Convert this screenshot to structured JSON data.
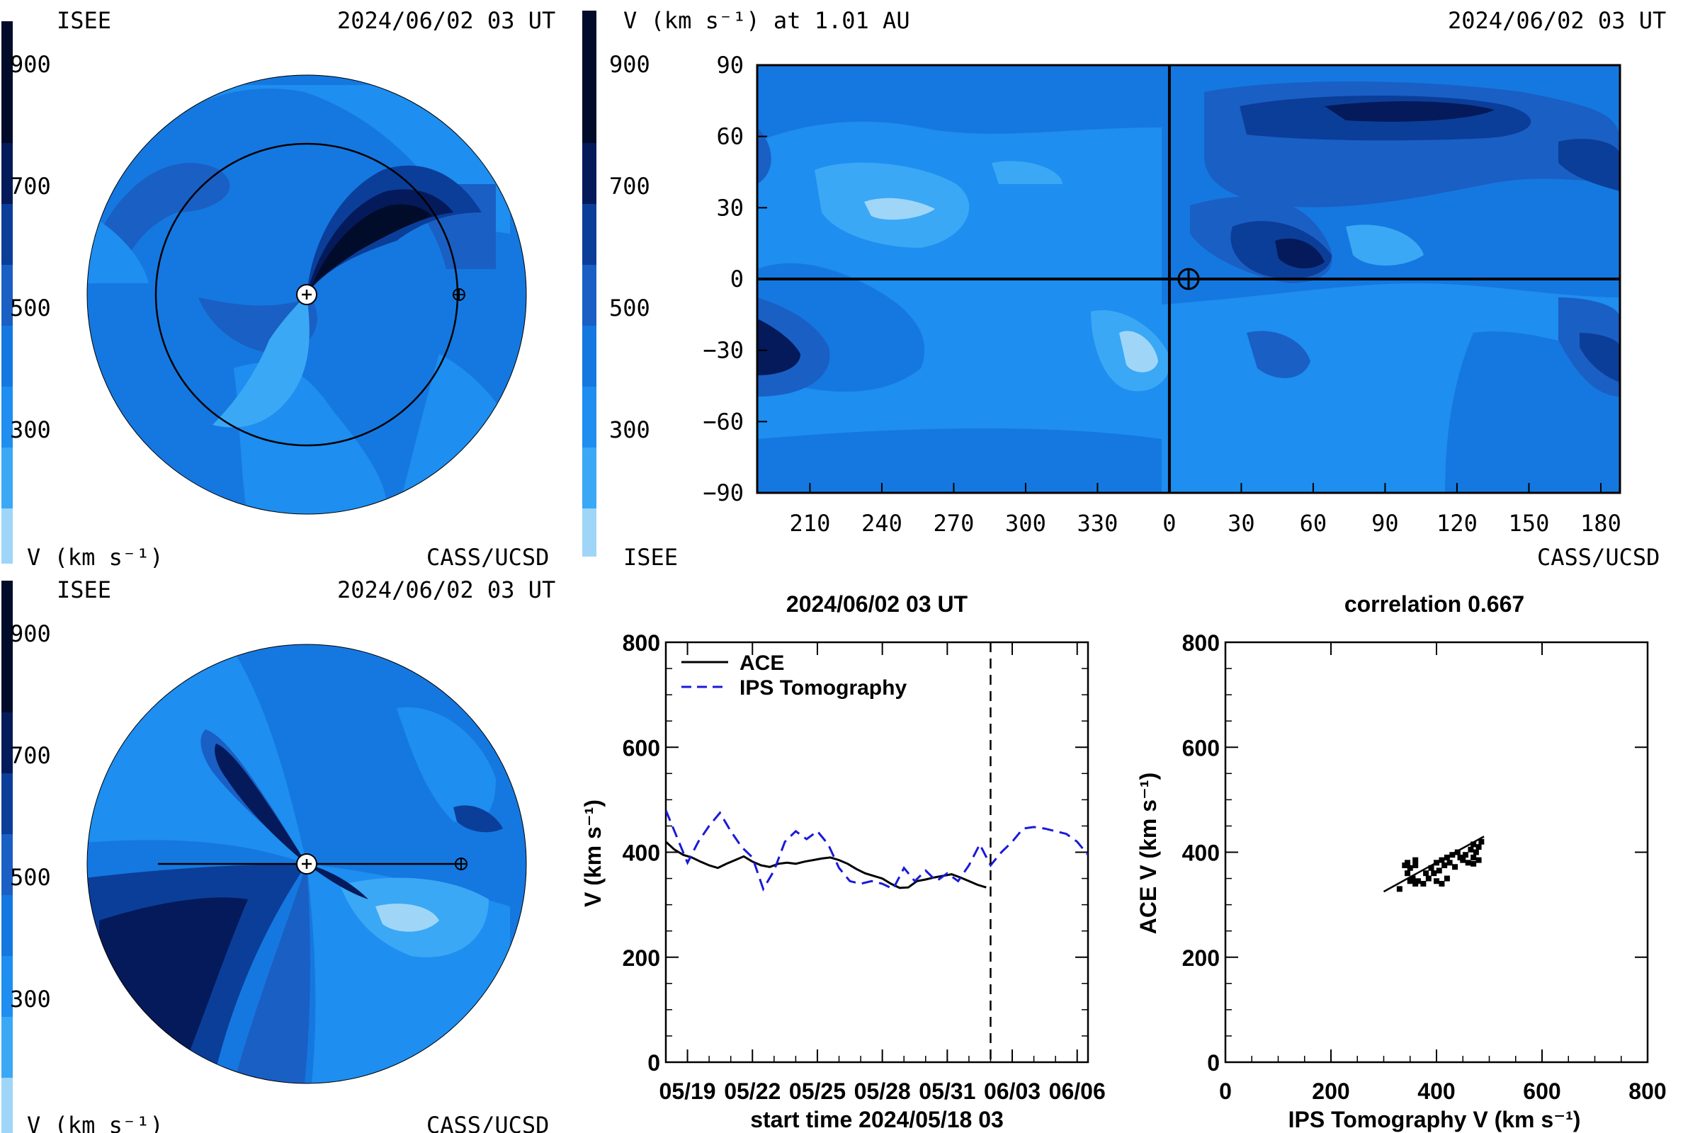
{
  "colors": {
    "levels": [
      "#9fd6f8",
      "#3aa8f5",
      "#1e8ef0",
      "#1578e0",
      "#1a5fc4",
      "#0b3e99",
      "#041a5a",
      "#000c2a"
    ],
    "ace_line": "#000000",
    "ips_line": "#1a1ad9"
  },
  "panels": {
    "top_left": {
      "org": "ISEE",
      "date": "2024/06/02 03 UT",
      "cbar_ticks": [
        "900",
        "700",
        "500",
        "300"
      ],
      "unit": "V (km s⁻¹)",
      "credit": "CASS/UCSD"
    },
    "top_right": {
      "title": "V (km s⁻¹) at 1.01 AU",
      "date": "2024/06/02 03 UT",
      "cbar_ticks": [
        "900",
        "700",
        "500",
        "300"
      ],
      "org": "ISEE",
      "credit": "CASS/UCSD"
    },
    "bottom_left": {
      "org": "ISEE",
      "date": "2024/06/02 03 UT",
      "cbar_ticks": [
        "900",
        "700",
        "500",
        "300"
      ],
      "unit": "V (km s⁻¹)",
      "credit": "CASS/UCSD"
    }
  },
  "chart_data": [
    {
      "type": "heatmap",
      "id": "synoptic-map",
      "title": "V (km s⁻¹) at 1.01 AU",
      "x_ticks": [
        "210",
        "240",
        "270",
        "300",
        "330",
        "0",
        "30",
        "60",
        "90",
        "120",
        "150",
        "180"
      ],
      "y_ticks": [
        "90",
        "60",
        "30",
        "0",
        "−30",
        "−60",
        "−90"
      ],
      "ylim": [
        -90,
        90
      ],
      "colorbar": [
        300,
        900
      ],
      "earth_marker": {
        "lon": 8,
        "lat": 0
      }
    },
    {
      "type": "line",
      "id": "timeseries",
      "title": "2024/06/02 03 UT",
      "ylabel": "V (km s⁻¹)",
      "xlabel": "start time 2024/05/18 03",
      "x_ticks": [
        "05/19",
        "05/22",
        "05/25",
        "05/28",
        "05/31",
        "06/03",
        "06/06"
      ],
      "y_ticks": [
        "800",
        "600",
        "400",
        "200",
        "0"
      ],
      "ylim": [
        0,
        800
      ],
      "xlim_days": [
        0,
        19.5
      ],
      "current_day": 15.0,
      "series": [
        {
          "name": "ACE",
          "x": [
            0,
            0.4,
            0.8,
            1.2,
            1.6,
            2.0,
            2.4,
            2.8,
            3.2,
            3.6,
            4.0,
            4.4,
            4.8,
            5.2,
            5.6,
            6.0,
            6.4,
            6.8,
            7.2,
            7.6,
            8.0,
            8.4,
            8.8,
            9.2,
            9.6,
            10.0,
            10.4,
            10.8,
            11.2,
            11.6,
            12.0,
            12.4,
            12.8,
            13.2,
            13.6,
            14.0,
            14.4,
            14.8
          ],
          "y": [
            420,
            405,
            395,
            390,
            382,
            375,
            370,
            378,
            385,
            392,
            382,
            375,
            372,
            378,
            380,
            378,
            382,
            385,
            388,
            390,
            385,
            378,
            368,
            360,
            355,
            350,
            340,
            332,
            333,
            345,
            348,
            352,
            355,
            358,
            352,
            345,
            338,
            333
          ]
        },
        {
          "name": "IPS Tomography",
          "x": [
            0,
            0.5,
            1.0,
            1.5,
            2.0,
            2.5,
            3.0,
            3.5,
            4.0,
            4.5,
            5.0,
            5.5,
            6.0,
            6.5,
            7.0,
            7.5,
            8.0,
            8.5,
            9.0,
            9.5,
            10.0,
            10.5,
            11.0,
            11.5,
            12.0,
            12.5,
            13.0,
            13.5,
            14.0,
            14.5,
            15.0,
            15.5,
            16.0,
            16.5,
            17.0,
            17.5,
            18.0,
            18.5,
            19.0,
            19.5
          ],
          "y": [
            480,
            430,
            380,
            420,
            450,
            475,
            440,
            410,
            390,
            330,
            365,
            420,
            440,
            425,
            440,
            415,
            370,
            345,
            340,
            345,
            340,
            330,
            370,
            345,
            365,
            345,
            360,
            345,
            375,
            415,
            375,
            400,
            420,
            445,
            448,
            445,
            440,
            435,
            420,
            395
          ]
        }
      ]
    },
    {
      "type": "scatter",
      "id": "correlation",
      "title": "correlation 0.667",
      "xlabel": "IPS Tomography V (km s⁻¹)",
      "ylabel": "ACE V (km s⁻¹)",
      "x_ticks": [
        "0",
        "200",
        "400",
        "600",
        "800"
      ],
      "y_ticks": [
        "800",
        "600",
        "400",
        "200",
        "0"
      ],
      "xlim": [
        0,
        800
      ],
      "ylim": [
        0,
        800
      ],
      "points": [
        [
          330,
          330
        ],
        [
          345,
          360
        ],
        [
          350,
          370
        ],
        [
          360,
          375
        ],
        [
          380,
          360
        ],
        [
          390,
          370
        ],
        [
          400,
          380
        ],
        [
          410,
          385
        ],
        [
          420,
          390
        ],
        [
          430,
          395
        ],
        [
          440,
          400
        ],
        [
          445,
          390
        ],
        [
          450,
          385
        ],
        [
          460,
          380
        ],
        [
          470,
          390
        ],
        [
          475,
          400
        ],
        [
          480,
          410
        ],
        [
          485,
          420
        ],
        [
          340,
          375
        ],
        [
          355,
          350
        ],
        [
          365,
          345
        ],
        [
          375,
          340
        ],
        [
          385,
          350
        ],
        [
          395,
          360
        ],
        [
          405,
          365
        ],
        [
          415,
          375
        ],
        [
          425,
          380
        ],
        [
          435,
          372
        ],
        [
          455,
          395
        ],
        [
          465,
          405
        ],
        [
          470,
          415
        ],
        [
          345,
          380
        ],
        [
          350,
          345
        ],
        [
          360,
          340
        ],
        [
          400,
          345
        ],
        [
          410,
          340
        ],
        [
          420,
          350
        ],
        [
          470,
          378
        ],
        [
          480,
          385
        ],
        [
          360,
          385
        ]
      ],
      "fit_line": [
        [
          300,
          325
        ],
        [
          490,
          430
        ]
      ]
    }
  ]
}
